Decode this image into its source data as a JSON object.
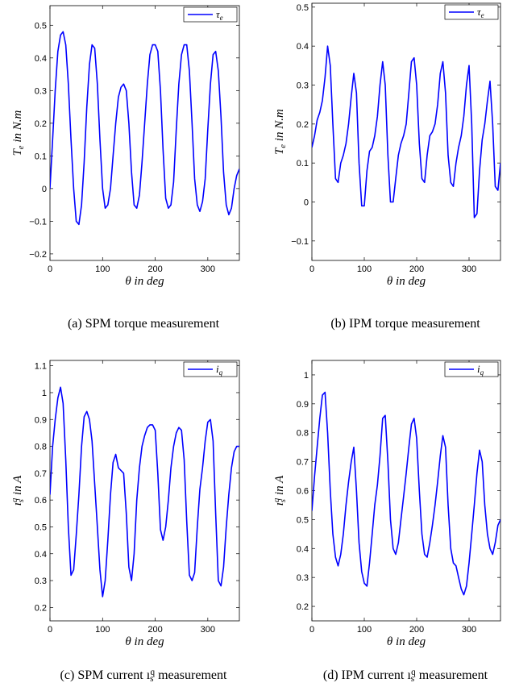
{
  "chart_data": [
    {
      "type": "line",
      "caption": "(a) SPM torque measurement",
      "xlabel": "θ in deg",
      "ylabel": "Te in N.m",
      "legend": "τe",
      "legend_position": "top-right",
      "xlim": [
        0,
        360
      ],
      "ylim": [
        -0.22,
        0.56
      ],
      "xticks": [
        0,
        100,
        200,
        300
      ],
      "yticks": [
        -0.2,
        -0.1,
        0,
        0.1,
        0.2,
        0.3,
        0.4,
        0.5
      ],
      "ytick_labels": [
        "−0.2",
        "−0.1",
        "0",
        "0.1",
        "0.2",
        "0.3",
        "0.4",
        "0.5"
      ],
      "grid": false,
      "color": "#0000ff",
      "series": [
        {
          "x": [
            0,
            5,
            10,
            15,
            20,
            25,
            30,
            35,
            40,
            45,
            50,
            55,
            60,
            65,
            70,
            75,
            80,
            85,
            90,
            95,
            100,
            105,
            110,
            115,
            120,
            125,
            130,
            135,
            140,
            145,
            150,
            155,
            160,
            165,
            170,
            175,
            180,
            185,
            190,
            195,
            200,
            205,
            210,
            215,
            220,
            225,
            230,
            235,
            240,
            245,
            250,
            255,
            260,
            265,
            270,
            275,
            280,
            285,
            290,
            295,
            300,
            305,
            310,
            315,
            320,
            325,
            330,
            335,
            340,
            345,
            350,
            355,
            360
          ],
          "y": [
            0.0,
            0.15,
            0.3,
            0.42,
            0.47,
            0.48,
            0.44,
            0.32,
            0.15,
            0.0,
            -0.1,
            -0.11,
            -0.05,
            0.08,
            0.25,
            0.38,
            0.44,
            0.43,
            0.32,
            0.15,
            0.0,
            -0.06,
            -0.05,
            0.0,
            0.1,
            0.2,
            0.28,
            0.31,
            0.32,
            0.3,
            0.2,
            0.05,
            -0.05,
            -0.06,
            -0.02,
            0.08,
            0.2,
            0.32,
            0.41,
            0.44,
            0.44,
            0.42,
            0.3,
            0.12,
            -0.03,
            -0.06,
            -0.05,
            0.02,
            0.18,
            0.32,
            0.41,
            0.44,
            0.44,
            0.36,
            0.2,
            0.03,
            -0.05,
            -0.07,
            -0.04,
            0.03,
            0.18,
            0.32,
            0.41,
            0.42,
            0.36,
            0.22,
            0.05,
            -0.05,
            -0.08,
            -0.06,
            0.0,
            0.04,
            0.06
          ]
        }
      ]
    },
    {
      "type": "line",
      "caption": "(b) IPM torque measurement",
      "xlabel": "θ in deg",
      "ylabel": "Te in N.m",
      "legend": "τe",
      "legend_position": "top-right",
      "xlim": [
        0,
        360
      ],
      "ylim": [
        -0.15,
        0.51
      ],
      "xticks": [
        0,
        100,
        200,
        300
      ],
      "yticks": [
        -0.1,
        0,
        0.1,
        0.2,
        0.3,
        0.4,
        0.5
      ],
      "ytick_labels": [
        "−0.1",
        "0",
        "0.1",
        "0.2",
        "0.3",
        "0.4",
        "0.5"
      ],
      "grid": false,
      "color": "#0000ff",
      "series": [
        {
          "x": [
            0,
            5,
            10,
            15,
            20,
            25,
            30,
            35,
            40,
            45,
            50,
            55,
            60,
            65,
            70,
            75,
            80,
            85,
            90,
            95,
            100,
            105,
            110,
            115,
            120,
            125,
            130,
            135,
            140,
            145,
            150,
            155,
            160,
            165,
            170,
            175,
            180,
            185,
            190,
            195,
            200,
            205,
            210,
            215,
            220,
            225,
            230,
            235,
            240,
            245,
            250,
            255,
            260,
            265,
            270,
            275,
            280,
            285,
            290,
            295,
            300,
            305,
            310,
            315,
            320,
            325,
            330,
            335,
            340,
            345,
            350,
            355,
            360
          ],
          "y": [
            0.14,
            0.17,
            0.21,
            0.23,
            0.26,
            0.32,
            0.4,
            0.35,
            0.2,
            0.06,
            0.05,
            0.1,
            0.12,
            0.15,
            0.2,
            0.27,
            0.33,
            0.28,
            0.1,
            -0.01,
            -0.01,
            0.08,
            0.13,
            0.14,
            0.17,
            0.22,
            0.3,
            0.36,
            0.3,
            0.12,
            0.0,
            0.0,
            0.06,
            0.12,
            0.15,
            0.17,
            0.2,
            0.28,
            0.36,
            0.37,
            0.3,
            0.15,
            0.06,
            0.05,
            0.12,
            0.17,
            0.18,
            0.2,
            0.25,
            0.33,
            0.36,
            0.28,
            0.12,
            0.05,
            0.04,
            0.1,
            0.14,
            0.17,
            0.22,
            0.3,
            0.35,
            0.2,
            -0.04,
            -0.03,
            0.08,
            0.16,
            0.2,
            0.26,
            0.31,
            0.2,
            0.04,
            0.03,
            0.1
          ]
        }
      ]
    },
    {
      "type": "line",
      "caption": "(c) SPM current ı_s^q measurement",
      "xlabel": "θ in deg",
      "ylabel": "ı_s^q in A",
      "legend": "iq",
      "legend_position": "top-right",
      "xlim": [
        0,
        360
      ],
      "ylim": [
        0.15,
        1.12
      ],
      "xticks": [
        0,
        100,
        200,
        300
      ],
      "yticks": [
        0.2,
        0.3,
        0.4,
        0.5,
        0.6,
        0.7,
        0.8,
        0.9,
        1.0,
        1.1
      ],
      "ytick_labels": [
        "0.2",
        "0.3",
        "0.4",
        "0.5",
        "0.6",
        "0.7",
        "0.8",
        "0.9",
        "1",
        "1.1"
      ],
      "grid": false,
      "color": "#0000ff",
      "series": [
        {
          "x": [
            0,
            5,
            10,
            15,
            20,
            25,
            30,
            35,
            40,
            45,
            50,
            55,
            60,
            65,
            70,
            75,
            80,
            85,
            90,
            95,
            100,
            105,
            110,
            115,
            120,
            125,
            130,
            135,
            140,
            145,
            150,
            155,
            160,
            165,
            170,
            175,
            180,
            185,
            190,
            195,
            200,
            205,
            210,
            215,
            220,
            225,
            230,
            235,
            240,
            245,
            250,
            255,
            260,
            265,
            270,
            275,
            280,
            285,
            290,
            295,
            300,
            305,
            310,
            315,
            320,
            325,
            330,
            335,
            340,
            345,
            350,
            355,
            360
          ],
          "y": [
            0.62,
            0.8,
            0.9,
            0.98,
            1.02,
            0.96,
            0.75,
            0.5,
            0.32,
            0.34,
            0.47,
            0.62,
            0.8,
            0.91,
            0.93,
            0.9,
            0.82,
            0.66,
            0.5,
            0.34,
            0.24,
            0.3,
            0.45,
            0.62,
            0.74,
            0.77,
            0.72,
            0.71,
            0.7,
            0.55,
            0.35,
            0.3,
            0.4,
            0.6,
            0.72,
            0.8,
            0.84,
            0.87,
            0.88,
            0.88,
            0.86,
            0.7,
            0.49,
            0.45,
            0.5,
            0.6,
            0.72,
            0.8,
            0.85,
            0.87,
            0.86,
            0.75,
            0.52,
            0.32,
            0.3,
            0.33,
            0.5,
            0.64,
            0.72,
            0.82,
            0.89,
            0.9,
            0.82,
            0.55,
            0.3,
            0.28,
            0.35,
            0.5,
            0.62,
            0.72,
            0.78,
            0.8,
            0.8
          ]
        }
      ]
    },
    {
      "type": "line",
      "caption": "(d) IPM current ı_s^q measurement",
      "xlabel": "θ in deg",
      "ylabel": "ı_s^q in A",
      "legend": "iq",
      "legend_position": "top-right",
      "xlim": [
        0,
        360
      ],
      "ylim": [
        0.15,
        1.05
      ],
      "xticks": [
        0,
        100,
        200,
        300
      ],
      "yticks": [
        0.2,
        0.3,
        0.4,
        0.5,
        0.6,
        0.7,
        0.8,
        0.9,
        1.0
      ],
      "ytick_labels": [
        "0.2",
        "0.3",
        "0.4",
        "0.5",
        "0.6",
        "0.7",
        "0.8",
        "0.9",
        "1"
      ],
      "grid": false,
      "color": "#0000ff",
      "series": [
        {
          "x": [
            0,
            5,
            10,
            15,
            20,
            25,
            30,
            35,
            40,
            45,
            50,
            55,
            60,
            65,
            70,
            75,
            80,
            85,
            90,
            95,
            100,
            105,
            110,
            115,
            120,
            125,
            130,
            135,
            140,
            145,
            150,
            155,
            160,
            165,
            170,
            175,
            180,
            185,
            190,
            195,
            200,
            205,
            210,
            215,
            220,
            225,
            230,
            235,
            240,
            245,
            250,
            255,
            260,
            265,
            270,
            275,
            280,
            285,
            290,
            295,
            300,
            305,
            310,
            315,
            320,
            325,
            330,
            335,
            340,
            345,
            350,
            355,
            360
          ],
          "y": [
            0.53,
            0.65,
            0.75,
            0.85,
            0.93,
            0.94,
            0.8,
            0.6,
            0.45,
            0.37,
            0.34,
            0.38,
            0.45,
            0.55,
            0.63,
            0.7,
            0.75,
            0.6,
            0.42,
            0.32,
            0.28,
            0.27,
            0.35,
            0.45,
            0.55,
            0.62,
            0.72,
            0.85,
            0.86,
            0.7,
            0.5,
            0.4,
            0.38,
            0.42,
            0.5,
            0.58,
            0.66,
            0.75,
            0.83,
            0.85,
            0.78,
            0.6,
            0.45,
            0.38,
            0.37,
            0.42,
            0.48,
            0.55,
            0.63,
            0.72,
            0.79,
            0.75,
            0.55,
            0.4,
            0.35,
            0.34,
            0.3,
            0.26,
            0.24,
            0.27,
            0.35,
            0.45,
            0.55,
            0.66,
            0.74,
            0.7,
            0.55,
            0.45,
            0.4,
            0.38,
            0.42,
            0.48,
            0.5
          ]
        }
      ]
    }
  ]
}
